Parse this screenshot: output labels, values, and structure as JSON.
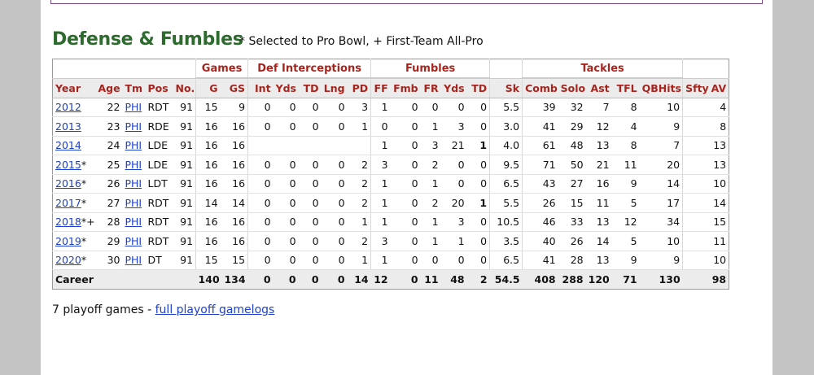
{
  "section": {
    "title": "Defense & Fumbles",
    "note": "* Selected to Pro Bowl, + First-Team All-Pro"
  },
  "groups": {
    "games": "Games",
    "def_int": "Def Interceptions",
    "fumbles": "Fumbles",
    "tackles": "Tackles"
  },
  "columns": [
    "Year",
    "Age",
    "Tm",
    "Pos",
    "No.",
    "G",
    "GS",
    "Int",
    "Yds",
    "TD",
    "Lng",
    "PD",
    "FF",
    "Fmb",
    "FR",
    "Yds",
    "TD",
    "Sk",
    "Comb",
    "Solo",
    "Ast",
    "TFL",
    "QBHits",
    "Sfty",
    "AV"
  ],
  "rows": [
    {
      "year": "2012",
      "mark": "",
      "age": "22",
      "tm": "PHI",
      "pos": "RDT",
      "no": "91",
      "g": "15",
      "gs": "9",
      "int": "0",
      "iyds": "0",
      "itd": "0",
      "lng": "0",
      "pd": "3",
      "ff": "1",
      "fmb": "0",
      "fr": "0",
      "fyds": "0",
      "ftd": "0",
      "sk": "5.5",
      "comb": "39",
      "solo": "32",
      "ast": "7",
      "tfl": "8",
      "qbhits": "10",
      "sfty": "",
      "av": "4"
    },
    {
      "year": "2013",
      "mark": "",
      "age": "23",
      "tm": "PHI",
      "pos": "RDE",
      "no": "91",
      "g": "16",
      "gs": "16",
      "int": "0",
      "iyds": "0",
      "itd": "0",
      "lng": "0",
      "pd": "1",
      "ff": "0",
      "fmb": "0",
      "fr": "1",
      "fyds": "3",
      "ftd": "0",
      "sk": "3.0",
      "comb": "41",
      "solo": "29",
      "ast": "12",
      "tfl": "4",
      "qbhits": "9",
      "sfty": "",
      "av": "8"
    },
    {
      "year": "2014",
      "mark": "",
      "age": "24",
      "tm": "PHI",
      "pos": "LDE",
      "no": "91",
      "g": "16",
      "gs": "16",
      "int": "",
      "iyds": "",
      "itd": "",
      "lng": "",
      "pd": "",
      "ff": "1",
      "fmb": "0",
      "fr": "3",
      "fyds": "21",
      "ftd": "1",
      "sk": "4.0",
      "comb": "61",
      "solo": "48",
      "ast": "13",
      "tfl": "8",
      "qbhits": "7",
      "sfty": "",
      "av": "13"
    },
    {
      "year": "2015",
      "mark": "*",
      "age": "25",
      "tm": "PHI",
      "pos": "LDE",
      "no": "91",
      "g": "16",
      "gs": "16",
      "int": "0",
      "iyds": "0",
      "itd": "0",
      "lng": "0",
      "pd": "2",
      "ff": "3",
      "fmb": "0",
      "fr": "2",
      "fyds": "0",
      "ftd": "0",
      "sk": "9.5",
      "comb": "71",
      "solo": "50",
      "ast": "21",
      "tfl": "11",
      "qbhits": "20",
      "sfty": "",
      "av": "13"
    },
    {
      "year": "2016",
      "mark": "*",
      "age": "26",
      "tm": "PHI",
      "pos": "LDT",
      "no": "91",
      "g": "16",
      "gs": "16",
      "int": "0",
      "iyds": "0",
      "itd": "0",
      "lng": "0",
      "pd": "2",
      "ff": "1",
      "fmb": "0",
      "fr": "1",
      "fyds": "0",
      "ftd": "0",
      "sk": "6.5",
      "comb": "43",
      "solo": "27",
      "ast": "16",
      "tfl": "9",
      "qbhits": "14",
      "sfty": "",
      "av": "10"
    },
    {
      "year": "2017",
      "mark": "*",
      "age": "27",
      "tm": "PHI",
      "pos": "RDT",
      "no": "91",
      "g": "14",
      "gs": "14",
      "int": "0",
      "iyds": "0",
      "itd": "0",
      "lng": "0",
      "pd": "2",
      "ff": "1",
      "fmb": "0",
      "fr": "2",
      "fyds": "20",
      "ftd": "1",
      "sk": "5.5",
      "comb": "26",
      "solo": "15",
      "ast": "11",
      "tfl": "5",
      "qbhits": "17",
      "sfty": "",
      "av": "14"
    },
    {
      "year": "2018",
      "mark": "*+",
      "age": "28",
      "tm": "PHI",
      "pos": "RDT",
      "no": "91",
      "g": "16",
      "gs": "16",
      "int": "0",
      "iyds": "0",
      "itd": "0",
      "lng": "0",
      "pd": "1",
      "ff": "1",
      "fmb": "0",
      "fr": "1",
      "fyds": "3",
      "ftd": "0",
      "sk": "10.5",
      "comb": "46",
      "solo": "33",
      "ast": "13",
      "tfl": "12",
      "qbhits": "34",
      "sfty": "",
      "av": "15"
    },
    {
      "year": "2019",
      "mark": "*",
      "age": "29",
      "tm": "PHI",
      "pos": "RDT",
      "no": "91",
      "g": "16",
      "gs": "16",
      "int": "0",
      "iyds": "0",
      "itd": "0",
      "lng": "0",
      "pd": "2",
      "ff": "3",
      "fmb": "0",
      "fr": "1",
      "fyds": "1",
      "ftd": "0",
      "sk": "3.5",
      "comb": "40",
      "solo": "26",
      "ast": "14",
      "tfl": "5",
      "qbhits": "10",
      "sfty": "",
      "av": "11"
    },
    {
      "year": "2020",
      "mark": "*",
      "age": "30",
      "tm": "PHI",
      "pos": "DT",
      "no": "91",
      "g": "15",
      "gs": "15",
      "int": "0",
      "iyds": "0",
      "itd": "0",
      "lng": "0",
      "pd": "1",
      "ff": "1",
      "fmb": "0",
      "fr": "0",
      "fyds": "0",
      "ftd": "0",
      "sk": "6.5",
      "comb": "41",
      "solo": "28",
      "ast": "13",
      "tfl": "9",
      "qbhits": "9",
      "sfty": "",
      "av": "10"
    }
  ],
  "career": {
    "label": "Career",
    "g": "140",
    "gs": "134",
    "int": "0",
    "iyds": "0",
    "itd": "0",
    "lng": "0",
    "pd": "14",
    "ff": "12",
    "fmb": "0",
    "fr": "11",
    "fyds": "48",
    "ftd": "2",
    "sk": "54.5",
    "comb": "408",
    "solo": "288",
    "ast": "120",
    "tfl": "71",
    "qbhits": "130",
    "sfty": "",
    "av": "98"
  },
  "playoff": {
    "text": "7 playoff games - ",
    "link": "full playoff gamelogs"
  },
  "colors": {
    "accent": "#a8251e",
    "title": "#2d6a2d",
    "link": "#1c3fd0"
  }
}
